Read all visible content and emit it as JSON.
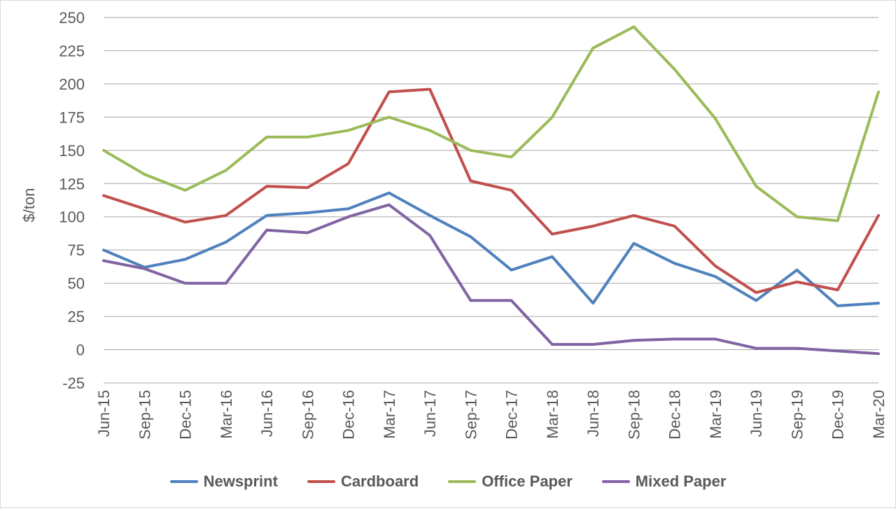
{
  "chart_data": {
    "type": "line",
    "title": "",
    "xlabel": "",
    "ylabel": "$/ton",
    "ylim": [
      -25,
      250
    ],
    "yticks": [
      -25,
      0,
      25,
      50,
      75,
      100,
      125,
      150,
      175,
      200,
      225,
      250
    ],
    "grid": true,
    "legend_position": "bottom",
    "categories": [
      "Jun-15",
      "Sep-15",
      "Dec-15",
      "Mar-16",
      "Jun-16",
      "Sep-16",
      "Dec-16",
      "Mar-17",
      "Jun-17",
      "Sep-17",
      "Dec-17",
      "Mar-18",
      "Jun-18",
      "Sep-18",
      "Dec-18",
      "Mar-19",
      "Jun-19",
      "Sep-19",
      "Dec-19",
      "Mar-20"
    ],
    "series": [
      {
        "name": "Newsprint",
        "color": "#4f81bd",
        "values": [
          75,
          62,
          68,
          81,
          101,
          103,
          106,
          118,
          101,
          85,
          60,
          70,
          35,
          80,
          65,
          55,
          37,
          60,
          33,
          35
        ]
      },
      {
        "name": "Cardboard",
        "color": "#c0504d",
        "values": [
          116,
          106,
          96,
          101,
          123,
          122,
          140,
          194,
          196,
          127,
          120,
          87,
          93,
          101,
          93,
          63,
          43,
          51,
          45,
          101
        ]
      },
      {
        "name": "Office Paper",
        "color": "#9bbb59",
        "values": [
          150,
          132,
          120,
          135,
          160,
          160,
          165,
          175,
          165,
          150,
          145,
          175,
          227,
          243,
          211,
          174,
          123,
          100,
          97,
          194
        ]
      },
      {
        "name": "Mixed Paper",
        "color": "#8064a2",
        "values": [
          67,
          61,
          50,
          50,
          90,
          88,
          100,
          109,
          86,
          37,
          37,
          4,
          4,
          7,
          8,
          8,
          1,
          1,
          -1,
          -3
        ]
      }
    ]
  }
}
